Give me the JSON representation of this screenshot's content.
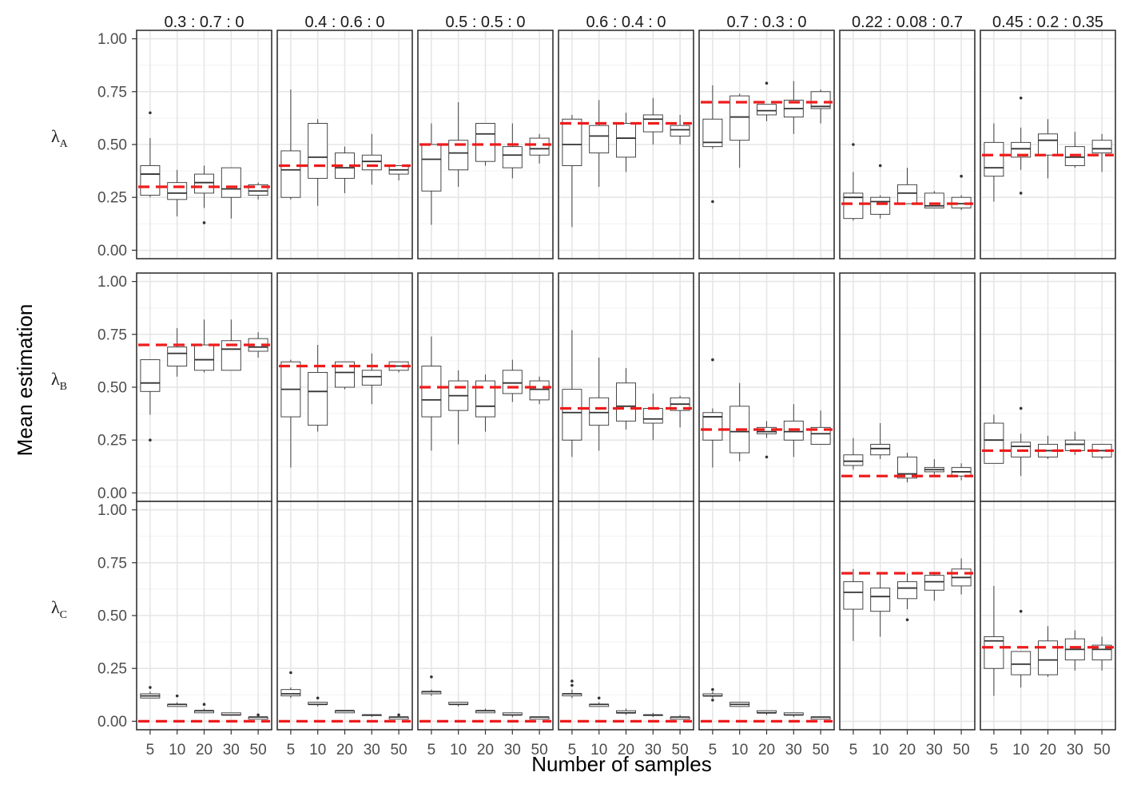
{
  "chart_data": {
    "type": "boxplot-facet-grid",
    "xlabel": "Number of samples",
    "ylabel": "Mean estimation",
    "x_categories": [
      "5",
      "10",
      "20",
      "30",
      "50"
    ],
    "y_ticks": [
      "0.00",
      "0.25",
      "0.50",
      "0.75",
      "1.00"
    ],
    "ylim": [
      -0.04,
      1.04
    ],
    "grid": true,
    "reference_line_color": "#ee1c1c",
    "columns": [
      "0.3 : 0.7 : 0",
      "0.4 : 0.6 : 0",
      "0.5 : 0.5 : 0",
      "0.6 : 0.4 : 0",
      "0.7 : 0.3 : 0",
      "0.22 : 0.08 : 0.7",
      "0.45 : 0.2 : 0.35"
    ],
    "rows": [
      {
        "label": "λ",
        "sub": "A"
      },
      {
        "label": "λ",
        "sub": "B"
      },
      {
        "label": "λ",
        "sub": "C"
      }
    ],
    "true_values": [
      [
        0.3,
        0.4,
        0.5,
        0.6,
        0.7,
        0.22,
        0.45
      ],
      [
        0.7,
        0.6,
        0.5,
        0.4,
        0.3,
        0.08,
        0.2
      ],
      [
        0.0,
        0.0,
        0.0,
        0.0,
        0.0,
        0.7,
        0.35
      ]
    ],
    "panels": [
      [
        [
          [
            0.25,
            0.26,
            0.36,
            0.4,
            0.53,
            [
              0.65
            ]
          ],
          [
            0.16,
            0.24,
            0.27,
            0.32,
            0.38,
            []
          ],
          [
            0.2,
            0.27,
            0.32,
            0.36,
            0.4,
            [
              0.13
            ]
          ],
          [
            0.15,
            0.25,
            0.29,
            0.39,
            0.39,
            []
          ],
          [
            0.24,
            0.26,
            0.28,
            0.31,
            0.32,
            []
          ]
        ],
        [
          [
            0.24,
            0.25,
            0.38,
            0.47,
            0.76,
            []
          ],
          [
            0.21,
            0.34,
            0.44,
            0.6,
            0.62,
            []
          ],
          [
            0.27,
            0.34,
            0.39,
            0.46,
            0.49,
            []
          ],
          [
            0.31,
            0.38,
            0.42,
            0.45,
            0.55,
            []
          ],
          [
            0.33,
            0.36,
            0.38,
            0.4,
            0.4,
            []
          ]
        ],
        [
          [
            0.12,
            0.28,
            0.43,
            0.5,
            0.6,
            []
          ],
          [
            0.3,
            0.38,
            0.46,
            0.52,
            0.7,
            []
          ],
          [
            0.4,
            0.42,
            0.55,
            0.6,
            0.6,
            []
          ],
          [
            0.34,
            0.39,
            0.45,
            0.49,
            0.6,
            []
          ],
          [
            0.41,
            0.45,
            0.48,
            0.53,
            0.55,
            []
          ]
        ],
        [
          [
            0.11,
            0.4,
            0.5,
            0.62,
            0.64,
            []
          ],
          [
            0.3,
            0.46,
            0.54,
            0.59,
            0.71,
            []
          ],
          [
            0.37,
            0.44,
            0.53,
            0.6,
            0.65,
            []
          ],
          [
            0.5,
            0.56,
            0.62,
            0.64,
            0.72,
            []
          ],
          [
            0.5,
            0.54,
            0.57,
            0.59,
            0.64,
            []
          ]
        ],
        [
          [
            0.48,
            0.49,
            0.51,
            0.62,
            0.78,
            [
              0.23
            ]
          ],
          [
            0.39,
            0.52,
            0.63,
            0.73,
            0.74,
            []
          ],
          [
            0.61,
            0.64,
            0.66,
            0.69,
            0.69,
            [
              0.79
            ]
          ],
          [
            0.55,
            0.63,
            0.67,
            0.71,
            0.8,
            []
          ],
          [
            0.6,
            0.67,
            0.68,
            0.75,
            0.76,
            []
          ]
        ],
        [
          [
            0.14,
            0.15,
            0.25,
            0.27,
            0.37,
            [
              0.5
            ]
          ],
          [
            0.15,
            0.17,
            0.23,
            0.25,
            0.26,
            [
              0.4
            ]
          ],
          [
            0.22,
            0.22,
            0.27,
            0.31,
            0.39,
            []
          ],
          [
            0.2,
            0.2,
            0.21,
            0.27,
            0.28,
            []
          ],
          [
            0.19,
            0.2,
            0.22,
            0.25,
            0.26,
            [
              0.35
            ]
          ]
        ],
        [
          [
            0.23,
            0.35,
            0.39,
            0.51,
            0.6,
            []
          ],
          [
            0.38,
            0.44,
            0.48,
            0.51,
            0.58,
            [
              0.72,
              0.27
            ]
          ],
          [
            0.34,
            0.45,
            0.52,
            0.55,
            0.62,
            []
          ],
          [
            0.39,
            0.4,
            0.44,
            0.49,
            0.56,
            []
          ],
          [
            0.37,
            0.46,
            0.48,
            0.52,
            0.55,
            []
          ]
        ]
      ],
      [
        [
          [
            0.37,
            0.48,
            0.52,
            0.63,
            0.63,
            [
              0.25
            ]
          ],
          [
            0.55,
            0.6,
            0.66,
            0.69,
            0.78,
            []
          ],
          [
            0.57,
            0.58,
            0.63,
            0.7,
            0.82,
            []
          ],
          [
            0.58,
            0.58,
            0.68,
            0.72,
            0.82,
            []
          ],
          [
            0.64,
            0.67,
            0.69,
            0.73,
            0.76,
            []
          ]
        ],
        [
          [
            0.12,
            0.36,
            0.49,
            0.62,
            0.63,
            []
          ],
          [
            0.29,
            0.32,
            0.48,
            0.57,
            0.7,
            []
          ],
          [
            0.49,
            0.5,
            0.57,
            0.62,
            0.62,
            []
          ],
          [
            0.42,
            0.51,
            0.55,
            0.58,
            0.66,
            []
          ],
          [
            0.57,
            0.58,
            0.6,
            0.62,
            0.62,
            []
          ]
        ],
        [
          [
            0.2,
            0.36,
            0.44,
            0.6,
            0.74,
            []
          ],
          [
            0.23,
            0.39,
            0.46,
            0.53,
            0.58,
            []
          ],
          [
            0.29,
            0.36,
            0.41,
            0.53,
            0.56,
            []
          ],
          [
            0.43,
            0.47,
            0.52,
            0.58,
            0.63,
            []
          ],
          [
            0.42,
            0.44,
            0.49,
            0.53,
            0.55,
            []
          ]
        ],
        [
          [
            0.17,
            0.25,
            0.38,
            0.49,
            0.77,
            []
          ],
          [
            0.2,
            0.32,
            0.38,
            0.45,
            0.64,
            []
          ],
          [
            0.3,
            0.34,
            0.41,
            0.52,
            0.59,
            []
          ],
          [
            0.25,
            0.33,
            0.35,
            0.4,
            0.47,
            []
          ],
          [
            0.31,
            0.39,
            0.42,
            0.45,
            0.46,
            []
          ]
        ],
        [
          [
            0.12,
            0.25,
            0.36,
            0.38,
            0.4,
            [
              0.63
            ]
          ],
          [
            0.15,
            0.19,
            0.29,
            0.41,
            0.52,
            []
          ],
          [
            0.26,
            0.28,
            0.29,
            0.31,
            0.34,
            [
              0.17
            ]
          ],
          [
            0.17,
            0.25,
            0.29,
            0.34,
            0.42,
            []
          ],
          [
            0.23,
            0.23,
            0.28,
            0.31,
            0.39,
            []
          ]
        ],
        [
          [
            0.11,
            0.13,
            0.15,
            0.18,
            0.26,
            []
          ],
          [
            0.16,
            0.18,
            0.21,
            0.23,
            0.33,
            []
          ],
          [
            0.05,
            0.07,
            0.09,
            0.17,
            0.19,
            []
          ],
          [
            0.08,
            0.1,
            0.11,
            0.12,
            0.16,
            []
          ],
          [
            0.06,
            0.08,
            0.1,
            0.12,
            0.14,
            []
          ]
        ],
        [
          [
            0.14,
            0.14,
            0.25,
            0.33,
            0.37,
            []
          ],
          [
            0.08,
            0.17,
            0.22,
            0.24,
            0.28,
            [
              0.4
            ]
          ],
          [
            0.16,
            0.17,
            0.2,
            0.23,
            0.27,
            []
          ],
          [
            0.18,
            0.2,
            0.23,
            0.25,
            0.29,
            []
          ],
          [
            0.16,
            0.17,
            0.2,
            0.23,
            0.23,
            []
          ]
        ]
      ],
      [
        [
          [
            0.11,
            0.11,
            0.12,
            0.13,
            0.14,
            [
              0.16
            ]
          ],
          [
            0.07,
            0.07,
            0.08,
            0.08,
            0.09,
            [
              0.12
            ]
          ],
          [
            0.04,
            0.04,
            0.05,
            0.05,
            0.06,
            [
              0.08
            ]
          ],
          [
            0.03,
            0.03,
            0.03,
            0.04,
            0.04,
            []
          ],
          [
            0.01,
            0.01,
            0.02,
            0.02,
            0.02,
            [
              0.03
            ]
          ]
        ],
        [
          [
            0.11,
            0.12,
            0.13,
            0.15,
            0.16,
            [
              0.23
            ]
          ],
          [
            0.07,
            0.08,
            0.08,
            0.09,
            0.09,
            [
              0.11
            ]
          ],
          [
            0.04,
            0.04,
            0.05,
            0.05,
            0.05,
            []
          ],
          [
            0.02,
            0.03,
            0.03,
            0.03,
            0.03,
            []
          ],
          [
            0.01,
            0.01,
            0.02,
            0.02,
            0.02,
            [
              0.03
            ]
          ]
        ],
        [
          [
            0.12,
            0.13,
            0.14,
            0.14,
            0.15,
            [
              0.21
            ]
          ],
          [
            0.07,
            0.08,
            0.08,
            0.09,
            0.09,
            []
          ],
          [
            0.04,
            0.04,
            0.05,
            0.05,
            0.06,
            []
          ],
          [
            0.02,
            0.03,
            0.03,
            0.04,
            0.04,
            []
          ],
          [
            0.01,
            0.01,
            0.02,
            0.02,
            0.02,
            []
          ]
        ],
        [
          [
            0.11,
            0.12,
            0.13,
            0.13,
            0.15,
            [
              0.19,
              0.17
            ]
          ],
          [
            0.07,
            0.07,
            0.08,
            0.08,
            0.09,
            [
              0.11
            ]
          ],
          [
            0.03,
            0.04,
            0.04,
            0.05,
            0.06,
            []
          ],
          [
            0.02,
            0.03,
            0.03,
            0.03,
            0.04,
            []
          ],
          [
            0.01,
            0.01,
            0.02,
            0.02,
            0.03,
            []
          ]
        ],
        [
          [
            0.11,
            0.12,
            0.12,
            0.13,
            0.14,
            [
              0.15,
              0.1
            ]
          ],
          [
            0.07,
            0.07,
            0.08,
            0.09,
            0.09,
            []
          ],
          [
            0.03,
            0.04,
            0.04,
            0.05,
            0.05,
            []
          ],
          [
            0.02,
            0.03,
            0.03,
            0.04,
            0.04,
            []
          ],
          [
            0.01,
            0.01,
            0.02,
            0.02,
            0.02,
            []
          ]
        ],
        [
          [
            0.38,
            0.53,
            0.61,
            0.66,
            0.72,
            []
          ],
          [
            0.4,
            0.52,
            0.59,
            0.63,
            0.7,
            []
          ],
          [
            0.53,
            0.58,
            0.63,
            0.66,
            0.7,
            [
              0.48
            ]
          ],
          [
            0.57,
            0.62,
            0.66,
            0.69,
            0.7,
            []
          ],
          [
            0.6,
            0.64,
            0.68,
            0.72,
            0.77,
            []
          ]
        ],
        [
          [
            0.12,
            0.25,
            0.38,
            0.4,
            0.64,
            []
          ],
          [
            0.16,
            0.22,
            0.27,
            0.33,
            0.33,
            [
              0.52
            ]
          ],
          [
            0.21,
            0.22,
            0.29,
            0.38,
            0.45,
            []
          ],
          [
            0.24,
            0.29,
            0.34,
            0.39,
            0.43,
            []
          ],
          [
            0.24,
            0.29,
            0.34,
            0.36,
            0.4,
            []
          ]
        ]
      ]
    ]
  }
}
